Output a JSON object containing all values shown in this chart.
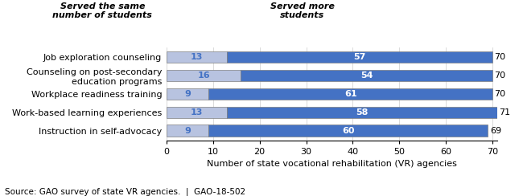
{
  "categories": [
    "Job exploration counseling",
    "Counseling on post-secondary\neducation programs",
    "Workplace readiness training",
    "Work-based learning experiences",
    "Instruction in self-advocacy"
  ],
  "same_values": [
    13,
    16,
    9,
    13,
    9
  ],
  "more_values": [
    57,
    54,
    61,
    58,
    60
  ],
  "totals": [
    70,
    70,
    70,
    71,
    69
  ],
  "same_color": "#b8c3e0",
  "more_color": "#4472c4",
  "bar_edge_color": "#7f7f7f",
  "text_color_same": "#4472c4",
  "text_color_more": "#ffffff",
  "xlabel": "Number of state vocational rehabilitation (VR) agencies",
  "xlim": [
    0,
    71
  ],
  "xticks": [
    0,
    10,
    20,
    30,
    40,
    50,
    60,
    70
  ],
  "legend_same": "Served the same\nnumber of students",
  "legend_more": "Served more\nstudents",
  "source_text": "Source: GAO survey of state VR agencies.  |  GAO-18-502",
  "figsize": [
    6.5,
    2.44
  ],
  "dpi": 100
}
